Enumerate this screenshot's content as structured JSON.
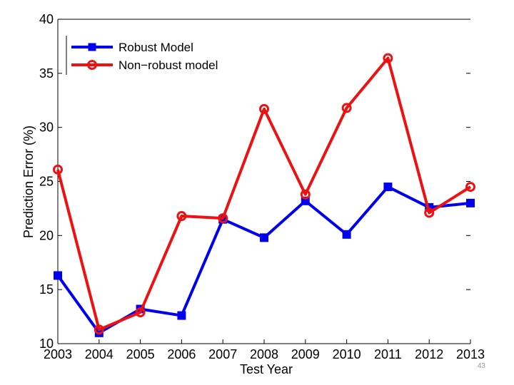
{
  "chart_data": {
    "type": "line",
    "title": "",
    "xlabel": "Test Year",
    "ylabel": "Prediction Error (%)",
    "x": [
      2003,
      2004,
      2005,
      2006,
      2007,
      2008,
      2009,
      2010,
      2011,
      2012,
      2013
    ],
    "xticks": [
      "2003",
      "2004",
      "2005",
      "2006",
      "2007",
      "2008",
      "2009",
      "2010",
      "2011",
      "2012",
      "2013"
    ],
    "yticks": [
      "10",
      "15",
      "20",
      "25",
      "30",
      "35",
      "40"
    ],
    "ylim": [
      10,
      40
    ],
    "xlim": [
      2003,
      2013
    ],
    "grid": false,
    "legend_position": "top-left",
    "series": [
      {
        "name": "Robust Model",
        "color": "#0000ee",
        "marker": "square",
        "values": [
          16.3,
          11.0,
          13.2,
          12.6,
          21.5,
          19.8,
          23.2,
          20.1,
          24.5,
          22.6,
          23.0
        ]
      },
      {
        "name": "Non−robust model",
        "color": "#ee1111",
        "marker": "circle",
        "values": [
          26.1,
          11.3,
          12.9,
          21.8,
          21.6,
          31.7,
          23.8,
          31.8,
          36.4,
          22.1,
          24.5
        ]
      }
    ]
  },
  "slide_number": "43"
}
